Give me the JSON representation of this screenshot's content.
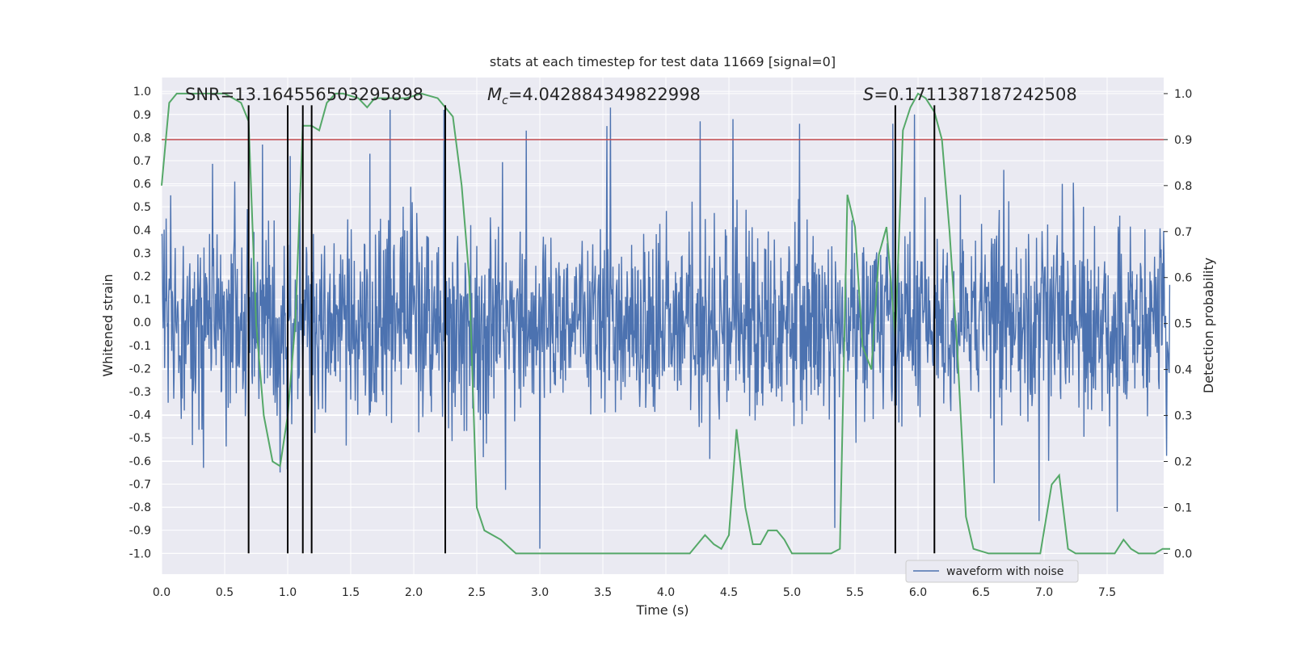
{
  "chart_data": {
    "type": "line",
    "title": "stats at each timestep for test data 11669 [signal=0]",
    "xlabel": "Time (s)",
    "ylabel": "Whitened strain",
    "y2label": "Detection probability",
    "xlim": [
      0.0,
      8.0
    ],
    "ylim": [
      -1.09,
      1.06
    ],
    "y2lim": [
      -0.045,
      1.035
    ],
    "xticks": [
      "0.0",
      "0.5",
      "1.0",
      "1.5",
      "2.0",
      "2.5",
      "3.0",
      "3.5",
      "4.0",
      "4.5",
      "5.0",
      "5.5",
      "6.0",
      "6.5",
      "7.0",
      "7.5"
    ],
    "yticks": [
      "1.0",
      "0.9",
      "0.8",
      "0.7",
      "0.6",
      "0.5",
      "0.4",
      "0.3",
      "0.2",
      "0.1",
      "0.0",
      "-0.1",
      "-0.2",
      "-0.3",
      "-0.4",
      "-0.5",
      "-0.6",
      "-0.7",
      "-0.8",
      "-0.9",
      "-1.0"
    ],
    "y2ticks": [
      "1.0",
      "0.9",
      "0.8",
      "0.7",
      "0.6",
      "0.5",
      "0.4",
      "0.3",
      "0.2",
      "0.1",
      "0.0"
    ],
    "annotations": {
      "snr": "SNR=13.164556503295898",
      "mc_sym": "M",
      "mc_sub": "c",
      "mc_val": "=4.042884349822998",
      "s_sym": "S",
      "s_val": "=0.1711387187242508"
    },
    "legend": {
      "label": "waveform with noise",
      "location": "lower-right"
    },
    "threshold": {
      "y2": 0.9,
      "color": "#c44e52"
    },
    "vlines": {
      "times": [
        0.69,
        1.0,
        1.12,
        1.19,
        2.25,
        5.82,
        6.13
      ],
      "y_from": -1.0,
      "y_to": 0.94
    },
    "series": [
      {
        "name": "waveform with noise",
        "axis": "left",
        "color": "#4c72b0",
        "style": "noise",
        "sample_rate": 250,
        "typical_amplitude": 0.2,
        "peak_amplitude": 0.96,
        "x": [
          0.07,
          0.33,
          0.58,
          0.8,
          0.94,
          1.02,
          1.65,
          1.81,
          2.24,
          2.89,
          3.0,
          3.53,
          3.56,
          4.27,
          4.53,
          5.06,
          5.34,
          5.8,
          5.97,
          6.68,
          6.96,
          7.58
        ],
        "values": [
          0.55,
          -0.63,
          0.61,
          0.77,
          -0.65,
          0.72,
          0.73,
          0.92,
          0.92,
          0.83,
          -0.98,
          0.85,
          0.93,
          0.87,
          0.88,
          0.86,
          -0.89,
          0.86,
          0.9,
          0.66,
          -0.86,
          -0.82
        ]
      },
      {
        "name": "Detection probability",
        "axis": "right",
        "color": "#55a868",
        "x": [
          0.0,
          0.06,
          0.12,
          0.25,
          0.38,
          0.5,
          0.63,
          0.69,
          0.75,
          0.81,
          0.88,
          0.94,
          1.0,
          1.06,
          1.12,
          1.19,
          1.25,
          1.31,
          1.38,
          1.44,
          1.56,
          1.63,
          1.69,
          1.81,
          1.94,
          2.06,
          2.19,
          2.25,
          2.31,
          2.38,
          2.44,
          2.5,
          2.56,
          2.69,
          2.81,
          3.0,
          3.25,
          3.5,
          3.75,
          4.0,
          4.19,
          4.25,
          4.31,
          4.38,
          4.44,
          4.5,
          4.56,
          4.63,
          4.69,
          4.75,
          4.81,
          4.88,
          4.94,
          5.0,
          5.06,
          5.19,
          5.25,
          5.31,
          5.38,
          5.44,
          5.5,
          5.56,
          5.63,
          5.69,
          5.75,
          5.82,
          5.88,
          5.94,
          6.0,
          6.06,
          6.13,
          6.19,
          6.25,
          6.31,
          6.38,
          6.44,
          6.56,
          6.69,
          6.75,
          6.81,
          6.88,
          6.94,
          6.97,
          7.06,
          7.12,
          7.19,
          7.25,
          7.31,
          7.44,
          7.5,
          7.56,
          7.63,
          7.69,
          7.75,
          7.81,
          7.88,
          7.94,
          8.0
        ],
        "values": [
          0.8,
          0.98,
          1.0,
          1.0,
          1.0,
          1.0,
          0.98,
          0.94,
          0.5,
          0.3,
          0.2,
          0.19,
          0.3,
          0.5,
          0.93,
          0.93,
          0.92,
          0.98,
          1.0,
          1.0,
          0.99,
          0.97,
          0.99,
          0.99,
          0.99,
          1.0,
          0.99,
          0.97,
          0.95,
          0.8,
          0.6,
          0.1,
          0.05,
          0.03,
          0.0,
          0.0,
          0.0,
          0.0,
          0.0,
          0.0,
          0.0,
          0.02,
          0.04,
          0.02,
          0.01,
          0.04,
          0.27,
          0.1,
          0.02,
          0.02,
          0.05,
          0.05,
          0.03,
          0.0,
          0.0,
          0.0,
          0.0,
          0.0,
          0.01,
          0.78,
          0.71,
          0.45,
          0.4,
          0.65,
          0.71,
          0.47,
          0.92,
          0.97,
          1.0,
          0.99,
          0.96,
          0.9,
          0.7,
          0.45,
          0.08,
          0.01,
          0.0,
          0.0,
          0.0,
          0.0,
          0.0,
          0.0,
          0.0,
          0.15,
          0.17,
          0.01,
          0.0,
          0.0,
          0.0,
          0.0,
          0.0,
          0.03,
          0.01,
          0.0,
          0.0,
          0.0,
          0.01,
          0.01
        ]
      }
    ]
  }
}
